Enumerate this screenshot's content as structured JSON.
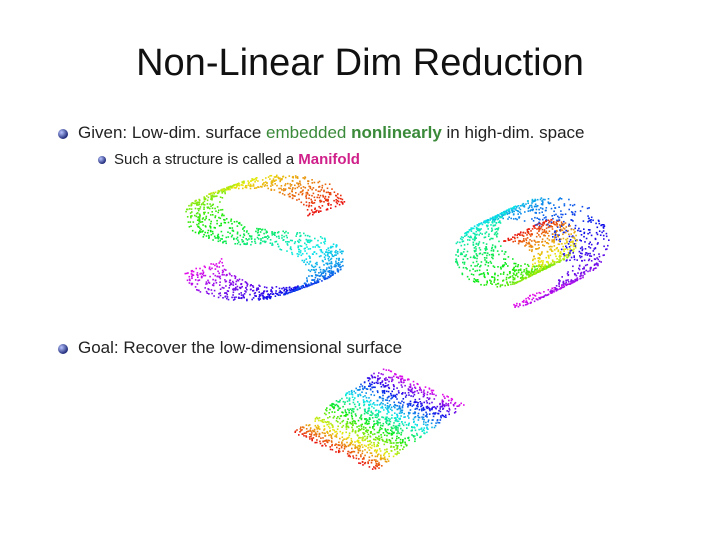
{
  "title": "Non-Linear Dim Reduction",
  "bullets": [
    {
      "parts": [
        "Given:  Low-dim.  surface",
        "embedded",
        "nonlinearly",
        "in high-dim.  space"
      ],
      "sub": [
        "Such a structure is called a",
        "Manifold"
      ]
    },
    {
      "parts": [
        "Goal:  Recover the low-dimensional surface"
      ]
    }
  ]
}
